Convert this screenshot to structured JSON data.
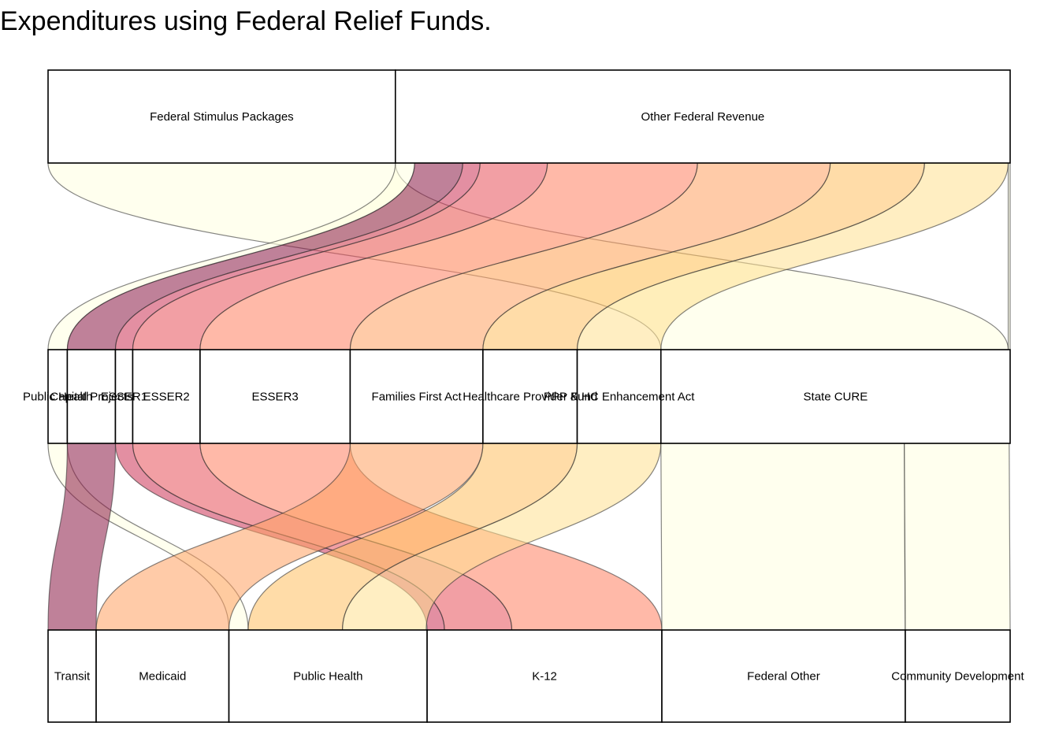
{
  "title": "Expenditures using Federal Relief Funds.",
  "chart_data": {
    "type": "alluvial",
    "title": "Expenditures using Federal Relief Funds.",
    "axes": [
      {
        "name": "",
        "strata": [
          {
            "label": "Federal Stimulus Packages",
            "value": 361
          },
          {
            "label": "Other Federal Revenue",
            "value": 639
          }
        ]
      },
      {
        "name": "",
        "strata": [
          {
            "label": "Public Health",
            "value": 20
          },
          {
            "label": "Capital Projects",
            "value": 50
          },
          {
            "label": "ESSER1",
            "value": 18
          },
          {
            "label": "ESSER2",
            "value": 70
          },
          {
            "label": "ESSER3",
            "value": 156
          },
          {
            "label": "Families First Act",
            "value": 138
          },
          {
            "label": "Healthcare Provider Fund",
            "value": 98
          },
          {
            "label": "PPP & HC Enhancement Act",
            "value": 87
          },
          {
            "label": "State CURE",
            "value": 363
          }
        ]
      },
      {
        "name": "",
        "strata": [
          {
            "label": "Transit",
            "value": 50
          },
          {
            "label": "Medicaid",
            "value": 138
          },
          {
            "label": "Public Health",
            "value": 206
          },
          {
            "label": "K-12",
            "value": 244
          },
          {
            "label": "Federal Other",
            "value": 253
          },
          {
            "label": "Community Development",
            "value": 109
          }
        ]
      }
    ],
    "flows_stage1": [
      {
        "from": "Federal Stimulus Packages",
        "to": "State CURE",
        "value": 361,
        "color": "#FFFFE0"
      },
      {
        "from": "Other Federal Revenue",
        "to": "Public Health",
        "value": 20,
        "color": "#FFFFE0"
      },
      {
        "from": "Other Federal Revenue",
        "to": "Capital Projects",
        "value": 50,
        "color": "#8B1A45"
      },
      {
        "from": "Other Federal Revenue",
        "to": "ESSER1",
        "value": 18,
        "color": "#CC3355"
      },
      {
        "from": "Other Federal Revenue",
        "to": "ESSER2",
        "value": 70,
        "color": "#E8505A"
      },
      {
        "from": "Other Federal Revenue",
        "to": "ESSER3",
        "value": 156,
        "color": "#FF7F60"
      },
      {
        "from": "Other Federal Revenue",
        "to": "Families First Act",
        "value": 138,
        "color": "#FFA060"
      },
      {
        "from": "Other Federal Revenue",
        "to": "Healthcare Provider Fund",
        "value": 98,
        "color": "#FFC060"
      },
      {
        "from": "Other Federal Revenue",
        "to": "PPP & HC Enhancement Act",
        "value": 87,
        "color": "#FFE090"
      },
      {
        "from": "Other Federal Revenue",
        "to": "State CURE",
        "value": 2,
        "color": "#FFFFE0"
      }
    ],
    "flows_stage2": [
      {
        "from": "Public Health",
        "to": "Public Health",
        "value": 20,
        "color": "#FFFFE0"
      },
      {
        "from": "Capital Projects",
        "to": "Transit",
        "value": 50,
        "color": "#8B1A45"
      },
      {
        "from": "ESSER1",
        "to": "K-12",
        "value": 18,
        "color": "#CC3355"
      },
      {
        "from": "ESSER2",
        "to": "K-12",
        "value": 70,
        "color": "#E8505A"
      },
      {
        "from": "ESSER3",
        "to": "K-12",
        "value": 156,
        "color": "#FF7F60"
      },
      {
        "from": "Families First Act",
        "to": "Medicaid",
        "value": 138,
        "color": "#FFA060"
      },
      {
        "from": "Healthcare Provider Fund",
        "to": "Public Health",
        "value": 98,
        "color": "#FFC060"
      },
      {
        "from": "PPP & HC Enhancement Act",
        "to": "Public Health",
        "value": 87,
        "color": "#FFE090"
      },
      {
        "from": "State CURE",
        "to": "Federal Other",
        "value": 253,
        "color": "#FFFFE0"
      },
      {
        "from": "State CURE",
        "to": "Community Development",
        "value": 109,
        "color": "#FFFFE0"
      }
    ],
    "axis_order": "left-to-right strata, axes from top to bottom",
    "grid": false,
    "legend": "none"
  }
}
